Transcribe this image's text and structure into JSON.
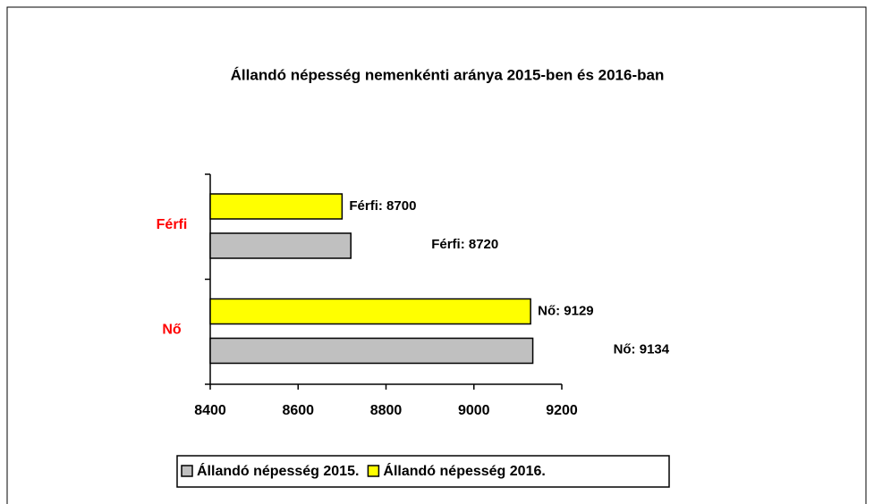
{
  "chart_data": {
    "type": "bar",
    "orientation": "horizontal",
    "title": "Állandó népesség nemenkénti aránya 2015-ben és 2016-ban",
    "categories": [
      "Férfi",
      "Nő"
    ],
    "series": [
      {
        "name": "Állandó népesség 2015.",
        "color": "#c0c0c0",
        "values": [
          8720,
          9134
        ],
        "value_labels": [
          "Férfi: 8720",
          "Nő: 9134"
        ]
      },
      {
        "name": "Állandó népesség 2016.",
        "color": "#ffff00",
        "values": [
          8700,
          9129
        ],
        "value_labels": [
          "Férfi: 8700",
          "Nő: 9129"
        ]
      }
    ],
    "xlim": [
      8400,
      9200
    ],
    "xticks": [
      8400,
      8600,
      8800,
      9000,
      9200
    ],
    "grid": false
  }
}
